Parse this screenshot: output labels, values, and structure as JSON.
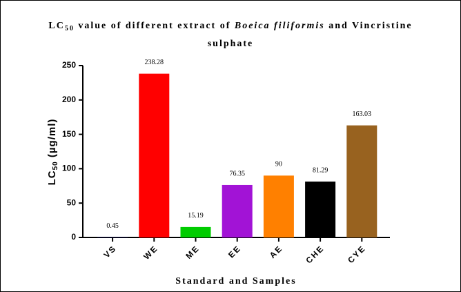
{
  "chart_data": {
    "type": "bar",
    "title": [
      "LC",
      "50",
      " value of different extract of ",
      "Boeica filiformis",
      " and Vincristine",
      "sulphate"
    ],
    "y_label": [
      "LC",
      "50",
      " (µg/ml)"
    ],
    "x_label": "Standard and Samples",
    "categories": [
      "VS",
      "WE",
      "ME",
      "EE",
      "AE",
      "CHE",
      "CYE"
    ],
    "values": [
      0.45,
      238.28,
      15.19,
      76.35,
      90,
      81.29,
      163.03
    ],
    "colors": [
      "#1c1c8e",
      "#ff0000",
      "#00cc00",
      "#a213d6",
      "#ff8000",
      "#000000",
      "#98621f"
    ],
    "ylim": [
      0,
      250
    ],
    "yticks": [
      0,
      50,
      100,
      150,
      200,
      250
    ],
    "grid": false
  }
}
